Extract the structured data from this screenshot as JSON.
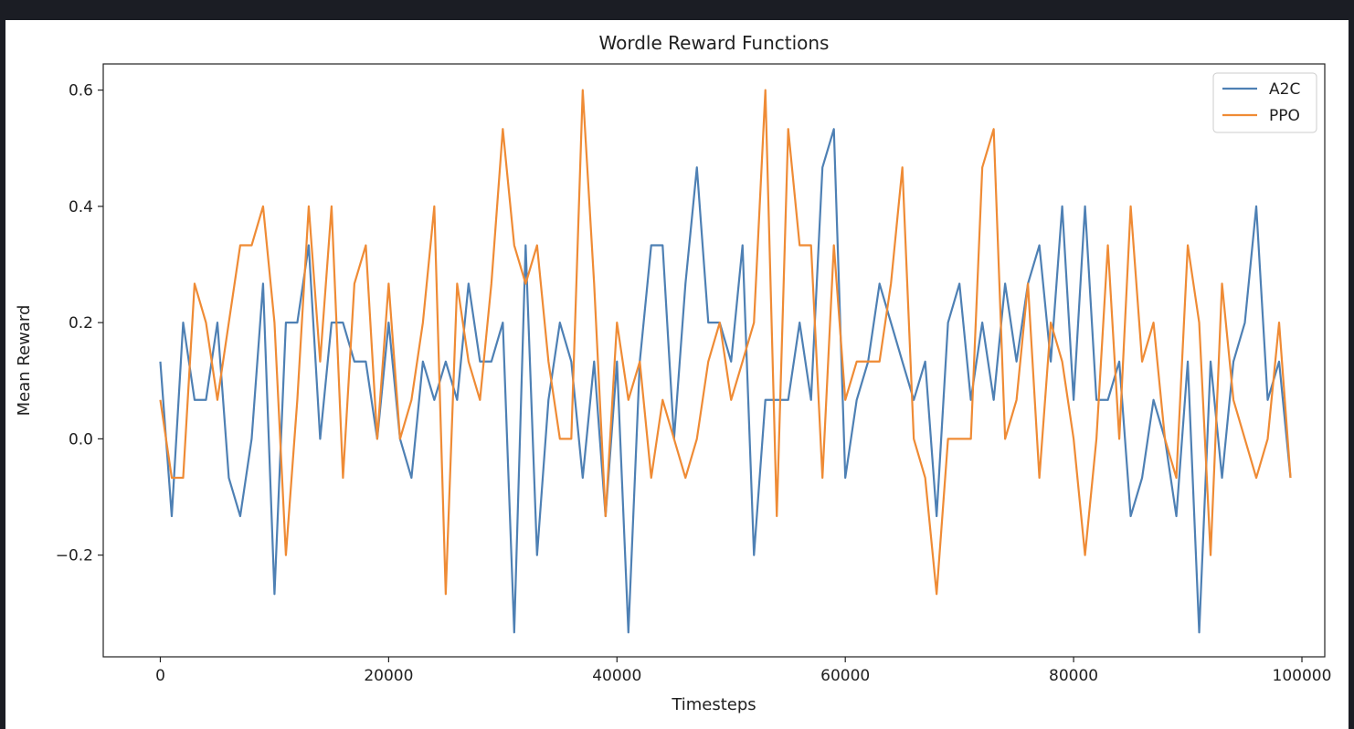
{
  "chart_data": {
    "type": "line",
    "title": "Wordle Reward Functions",
    "xlabel": "Timesteps",
    "ylabel": "Mean Reward",
    "xlim": [
      -5000,
      102000
    ],
    "ylim": [
      -0.375,
      0.645
    ],
    "xticks": [
      0,
      20000,
      40000,
      60000,
      80000,
      100000
    ],
    "xtick_labels": [
      "0",
      "20000",
      "40000",
      "60000",
      "80000",
      "100000"
    ],
    "yticks": [
      -0.2,
      0.0,
      0.2,
      0.4,
      0.6
    ],
    "ytick_labels": [
      "−0.2",
      "0.0",
      "0.2",
      "0.4",
      "0.6"
    ],
    "grid": false,
    "legend_position": "top-right",
    "x_step": 1000,
    "series": [
      {
        "name": "A2C",
        "color": "#4e80b4",
        "values": [
          0.133,
          -0.133,
          0.2,
          0.067,
          0.067,
          0.2,
          -0.067,
          -0.133,
          0,
          0.267,
          -0.267,
          0.2,
          0.2,
          0.333,
          0,
          0.2,
          0.2,
          0.133,
          0.133,
          0,
          0.2,
          0,
          -0.067,
          0.133,
          0.067,
          0.133,
          0.067,
          0.267,
          0.133,
          0.133,
          0.2,
          -0.333,
          0.333,
          -0.2,
          0.067,
          0.2,
          0.133,
          -0.067,
          0.133,
          -0.133,
          0.133,
          -0.333,
          0.133,
          0.333,
          0.333,
          0,
          0.267,
          0.467,
          0.2,
          0.2,
          0.133,
          0.333,
          -0.2,
          0.067,
          0.067,
          0.067,
          0.2,
          0.067,
          0.467,
          0.533,
          -0.067,
          0.067,
          0.133,
          0.267,
          0.2,
          0.133,
          0.067,
          0.133,
          -0.133,
          0.2,
          0.267,
          0.067,
          0.2,
          0.067,
          0.267,
          0.133,
          0.267,
          0.333,
          0.133,
          0.4,
          0.067,
          0.4,
          0.067,
          0.067,
          0.133,
          -0.133,
          -0.067,
          0.067,
          0,
          -0.133,
          0.133,
          -0.333,
          0.133,
          -0.067,
          0.133,
          0.2,
          0.4,
          0.067,
          0.133,
          -0.067
        ]
      },
      {
        "name": "PPO",
        "color": "#ef8b35",
        "values": [
          0.067,
          -0.067,
          -0.067,
          0.267,
          0.2,
          0.067,
          0.2,
          0.333,
          0.333,
          0.4,
          0.2,
          -0.2,
          0.067,
          0.4,
          0.133,
          0.4,
          -0.067,
          0.267,
          0.333,
          0,
          0.267,
          0,
          0.067,
          0.2,
          0.4,
          -0.267,
          0.267,
          0.133,
          0.067,
          0.267,
          0.533,
          0.333,
          0.267,
          0.333,
          0.133,
          0,
          0,
          0.6,
          0.267,
          -0.133,
          0.2,
          0.067,
          0.133,
          -0.067,
          0.067,
          0,
          -0.067,
          0,
          0.133,
          0.2,
          0.067,
          0.133,
          0.2,
          0.6,
          -0.133,
          0.533,
          0.333,
          0.333,
          -0.067,
          0.333,
          0.067,
          0.133,
          0.133,
          0.133,
          0.267,
          0.467,
          0,
          -0.067,
          -0.267,
          0,
          0,
          0,
          0.467,
          0.533,
          0,
          0.067,
          0.267,
          -0.067,
          0.2,
          0.133,
          0,
          -0.2,
          0,
          0.333,
          0,
          0.4,
          0.133,
          0.2,
          0,
          -0.067,
          0.333,
          0.2,
          -0.2,
          0.267,
          0.067,
          0,
          -0.067,
          0,
          0.2,
          -0.067
        ]
      }
    ]
  }
}
